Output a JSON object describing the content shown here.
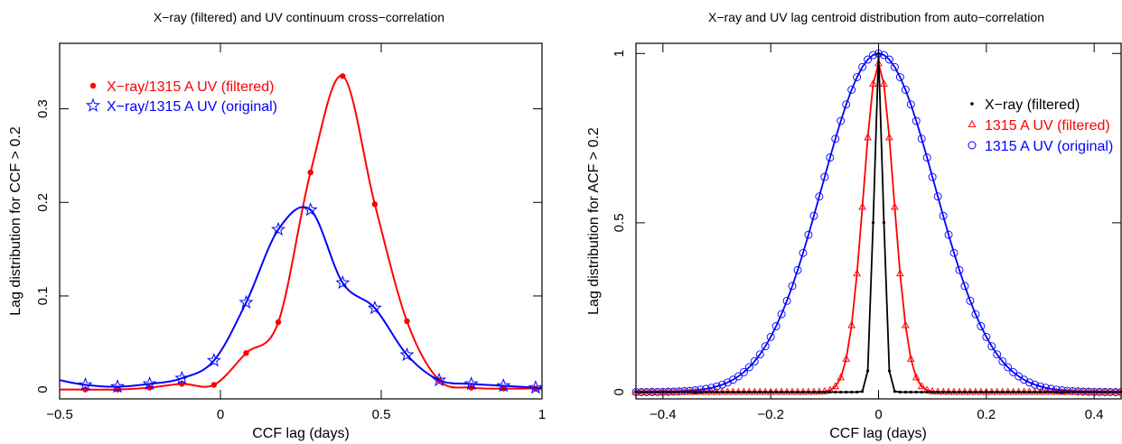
{
  "chart_data": [
    {
      "type": "line",
      "title": "X−ray (filtered) and UV continuum cross−correlation",
      "xlabel": "CCF lag (days)",
      "ylabel": "Lag distribution for CCF > 0.2",
      "xlim": [
        -0.5,
        1.0
      ],
      "ylim": [
        -0.01,
        0.37
      ],
      "xticks": [
        -0.5,
        0,
        0.5,
        1
      ],
      "xtick_labels": [
        "−0.5",
        "0",
        "0.5",
        "1"
      ],
      "yticks": [
        0,
        0.1,
        0.2,
        0.3
      ],
      "ytick_labels": [
        "0",
        "0.1",
        "0.2",
        "0.3"
      ],
      "legend_position": "top-left",
      "series": [
        {
          "name": "X−ray/1315 A UV (filtered)",
          "color": "#ff0000",
          "marker": "dot",
          "x": [
            -0.5,
            -0.42,
            -0.32,
            -0.22,
            -0.12,
            -0.02,
            0.08,
            0.18,
            0.28,
            0.38,
            0.48,
            0.58,
            0.68,
            0.78,
            0.88,
            0.98,
            1.0
          ],
          "y": [
            0.0,
            0.0,
            0.0,
            0.002,
            0.006,
            0.005,
            0.039,
            0.072,
            0.232,
            0.335,
            0.198,
            0.073,
            0.01,
            0.002,
            0.001,
            0.001,
            0.0
          ]
        },
        {
          "name": "X−ray/1315 A UV (original)",
          "color": "#0000ff",
          "marker": "star",
          "x": [
            -0.5,
            -0.42,
            -0.32,
            -0.22,
            -0.12,
            -0.02,
            0.08,
            0.18,
            0.28,
            0.38,
            0.48,
            0.58,
            0.68,
            0.78,
            0.88,
            0.98,
            1.0
          ],
          "y": [
            0.01,
            0.005,
            0.003,
            0.006,
            0.012,
            0.031,
            0.093,
            0.171,
            0.192,
            0.114,
            0.087,
            0.037,
            0.01,
            0.006,
            0.004,
            0.002,
            0.002
          ]
        }
      ]
    },
    {
      "type": "line",
      "title": "X−ray and UV lag centroid distribution from auto−correlation",
      "xlabel": "CCF lag (days)",
      "ylabel": "Lag distribution for ACF > 0.2",
      "xlim": [
        -0.45,
        0.45
      ],
      "ylim": [
        -0.02,
        1.03
      ],
      "xticks": [
        -0.4,
        -0.2,
        0,
        0.2,
        0.4
      ],
      "xtick_labels": [
        "−0.4",
        "−0.2",
        "0",
        "0.2",
        "0.4"
      ],
      "yticks": [
        0,
        0.5,
        1
      ],
      "ytick_labels": [
        "0",
        "0.5",
        "1"
      ],
      "legend_position": "right",
      "series": [
        {
          "name": "X−ray (filtered)",
          "color": "#000000",
          "marker": "dot",
          "sigma": 0.0085,
          "peak": 1.0,
          "step": 0.01
        },
        {
          "name": "1315 A UV (filtered)",
          "color": "#ff0000",
          "marker": "triangle",
          "sigma": 0.028,
          "peak": 0.97,
          "step": 0.01
        },
        {
          "name": "1315 A UV (original)",
          "color": "#0000ff",
          "marker": "circle",
          "sigma": 0.105,
          "peak": 1.0,
          "step": 0.01
        }
      ]
    }
  ]
}
